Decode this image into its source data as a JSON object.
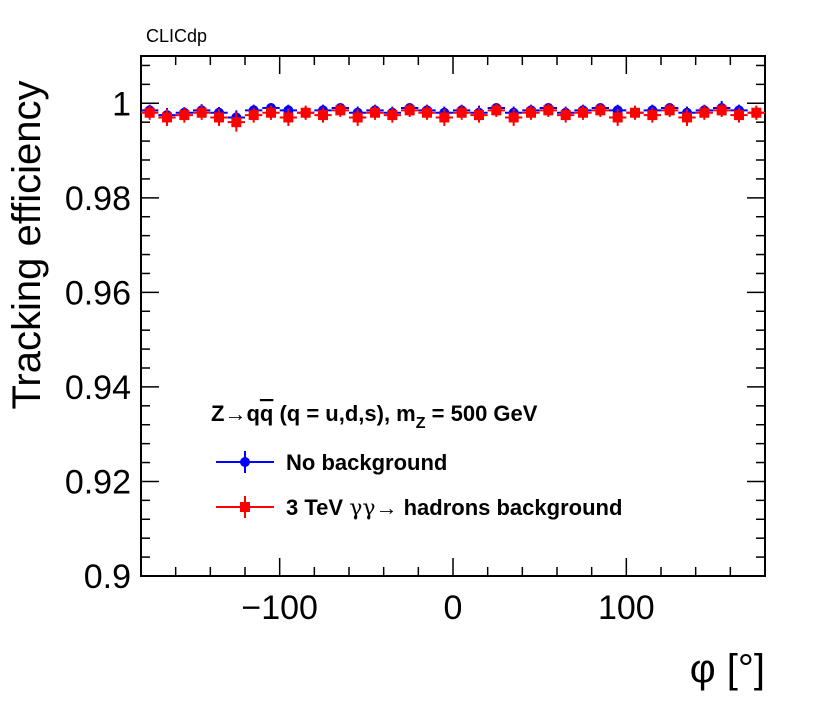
{
  "chart_data": {
    "type": "scatter",
    "brand_label": "CLICdp",
    "xlabel": "φ [°]",
    "ylabel": "Tracking efficiency",
    "xlim": [
      -180,
      180
    ],
    "ylim": [
      0.9,
      1.01
    ],
    "x_ticks": [
      -100,
      0,
      100
    ],
    "x_tick_labels": [
      "−100",
      "0",
      "100"
    ],
    "y_ticks": [
      0.9,
      0.92,
      0.94,
      0.96,
      0.98,
      1
    ],
    "y_tick_labels": [
      "0.9",
      "0.92",
      "0.94",
      "0.96",
      "0.98",
      "1"
    ],
    "legend": {
      "header": "Z→qq̄ (q = u,d,s), m_Z = 500 GeV",
      "header_parts": {
        "pre": "Z→q",
        "qbar": "q",
        "mid": " (q = u,d,s), m",
        "sub": "Z",
        "post": " = 500 GeV"
      },
      "placement": "bottom-left"
    },
    "series": [
      {
        "name": "No background",
        "color": "#0000ff",
        "marker": "circle",
        "x": [
          -175,
          -165,
          -155,
          -145,
          -135,
          -125,
          -115,
          -105,
          -95,
          -85,
          -75,
          -65,
          -55,
          -45,
          -35,
          -25,
          -15,
          -5,
          5,
          15,
          25,
          35,
          45,
          55,
          65,
          75,
          85,
          95,
          105,
          115,
          125,
          135,
          145,
          155,
          165,
          175
        ],
        "y": [
          0.9985,
          0.9975,
          0.998,
          0.9985,
          0.998,
          0.997,
          0.9985,
          0.999,
          0.9985,
          0.998,
          0.9985,
          0.999,
          0.998,
          0.9985,
          0.998,
          0.999,
          0.9985,
          0.998,
          0.9985,
          0.998,
          0.999,
          0.998,
          0.9985,
          0.999,
          0.998,
          0.9985,
          0.999,
          0.9985,
          0.998,
          0.9985,
          0.999,
          0.998,
          0.9985,
          0.999,
          0.9985,
          0.998
        ],
        "yerr": [
          0.0012,
          0.0015,
          0.0012,
          0.0013,
          0.0012,
          0.0015,
          0.0012,
          0.001,
          0.0012,
          0.0013,
          0.0012,
          0.001,
          0.0013,
          0.0012,
          0.0013,
          0.001,
          0.0012,
          0.0013,
          0.0012,
          0.0015,
          0.001,
          0.0013,
          0.0012,
          0.001,
          0.0013,
          0.0012,
          0.001,
          0.0012,
          0.0013,
          0.0012,
          0.001,
          0.0013,
          0.0012,
          0.0015,
          0.0012,
          0.0013
        ]
      },
      {
        "name": "3 TeV  γγ→ hadrons background",
        "name_parts": {
          "pre": "3 TeV  ",
          "greek": "γγ",
          "post": "→ hadrons background"
        },
        "color": "#ff0000",
        "marker": "square",
        "x": [
          -175,
          -165,
          -155,
          -145,
          -135,
          -125,
          -115,
          -105,
          -95,
          -85,
          -75,
          -65,
          -55,
          -45,
          -35,
          -25,
          -15,
          -5,
          5,
          15,
          25,
          35,
          45,
          55,
          65,
          75,
          85,
          95,
          105,
          115,
          125,
          135,
          145,
          155,
          165,
          175
        ],
        "y": [
          0.998,
          0.997,
          0.9975,
          0.998,
          0.997,
          0.996,
          0.9975,
          0.998,
          0.997,
          0.998,
          0.9975,
          0.9985,
          0.997,
          0.998,
          0.9975,
          0.9985,
          0.998,
          0.997,
          0.998,
          0.9975,
          0.9985,
          0.997,
          0.998,
          0.9985,
          0.9975,
          0.998,
          0.9985,
          0.997,
          0.998,
          0.9975,
          0.9985,
          0.997,
          0.998,
          0.9985,
          0.9975,
          0.998
        ],
        "yerr": [
          0.0015,
          0.0018,
          0.0016,
          0.0015,
          0.0018,
          0.002,
          0.0016,
          0.0015,
          0.0018,
          0.0015,
          0.0016,
          0.0014,
          0.0018,
          0.0015,
          0.0016,
          0.0014,
          0.0015,
          0.0018,
          0.0015,
          0.0016,
          0.0014,
          0.0018,
          0.0015,
          0.0014,
          0.0016,
          0.0015,
          0.0014,
          0.0018,
          0.0015,
          0.0016,
          0.0014,
          0.0018,
          0.0015,
          0.0014,
          0.0016,
          0.0015
        ]
      }
    ]
  }
}
